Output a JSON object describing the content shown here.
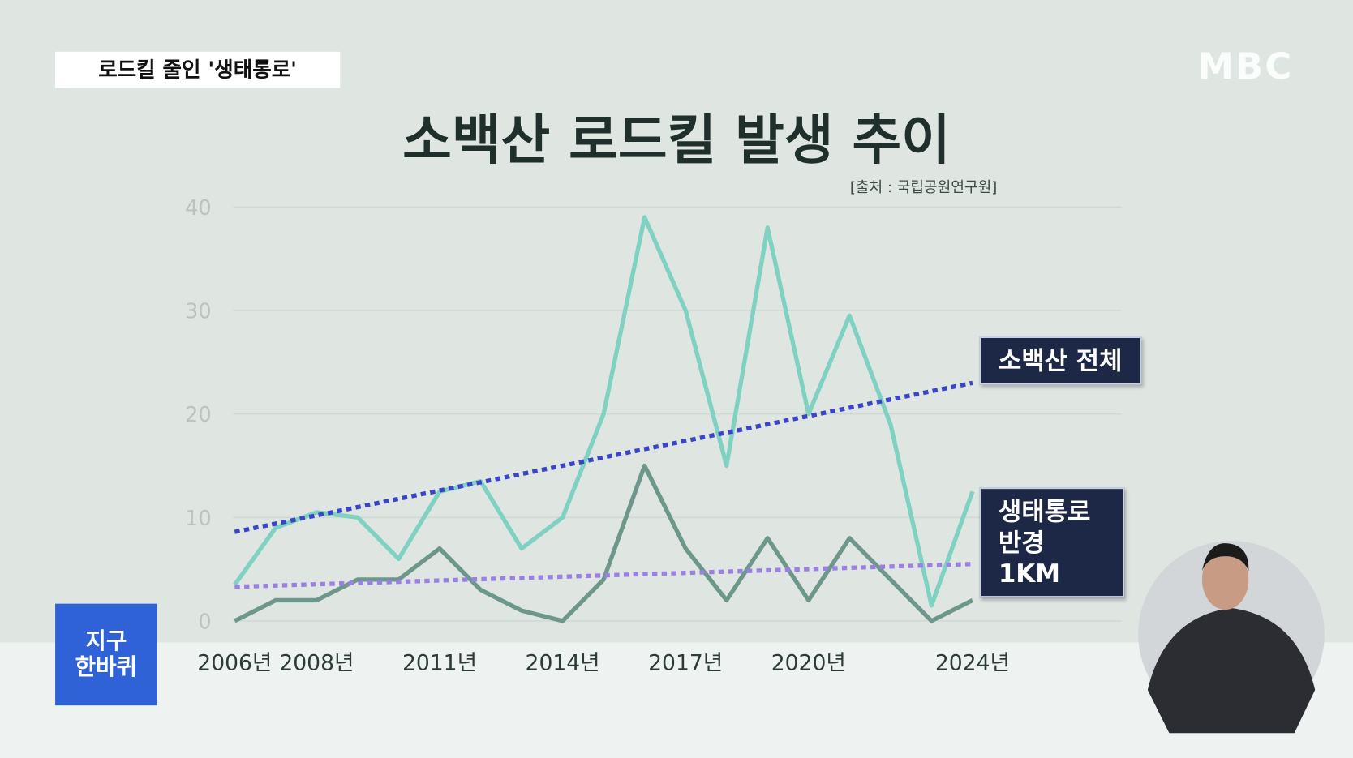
{
  "header": {
    "tag": "로드킬 줄인 '생태통로'",
    "logo": "MBC",
    "program": "지구 한바퀴"
  },
  "chart_data": {
    "type": "line",
    "title": "소백산 로드킬 발생 추이",
    "source": "[출처 : 국립공원연구원]",
    "categories": [
      "2006년",
      null,
      "2008년",
      null,
      null,
      "2011년",
      null,
      null,
      "2014년",
      null,
      null,
      "2017년",
      null,
      null,
      "2020년",
      null,
      null,
      null,
      "2024년"
    ],
    "series": [
      {
        "name": "소백산 전체",
        "color": "#7fd1c2",
        "values": [
          3.5,
          9,
          10.5,
          10,
          6,
          12.5,
          13.5,
          7,
          10,
          20,
          39,
          30,
          15,
          38,
          20,
          29.5,
          19,
          1.5,
          12.5
        ],
        "trend": [
          8.6,
          23
        ],
        "trend_color": "#3a44c6"
      },
      {
        "name": "생태통로 반경 1KM",
        "color": "#6e978c",
        "values": [
          0,
          2,
          2,
          4,
          4,
          7,
          3,
          1,
          0,
          4,
          15,
          7,
          2,
          8,
          2,
          8,
          4,
          0,
          2
        ],
        "trend": [
          3.3,
          5.5
        ],
        "trend_color": "#9b7fe2"
      }
    ],
    "ylim": [
      0,
      40
    ],
    "yticks": [
      0,
      10,
      20,
      30,
      40
    ],
    "grid": true
  }
}
